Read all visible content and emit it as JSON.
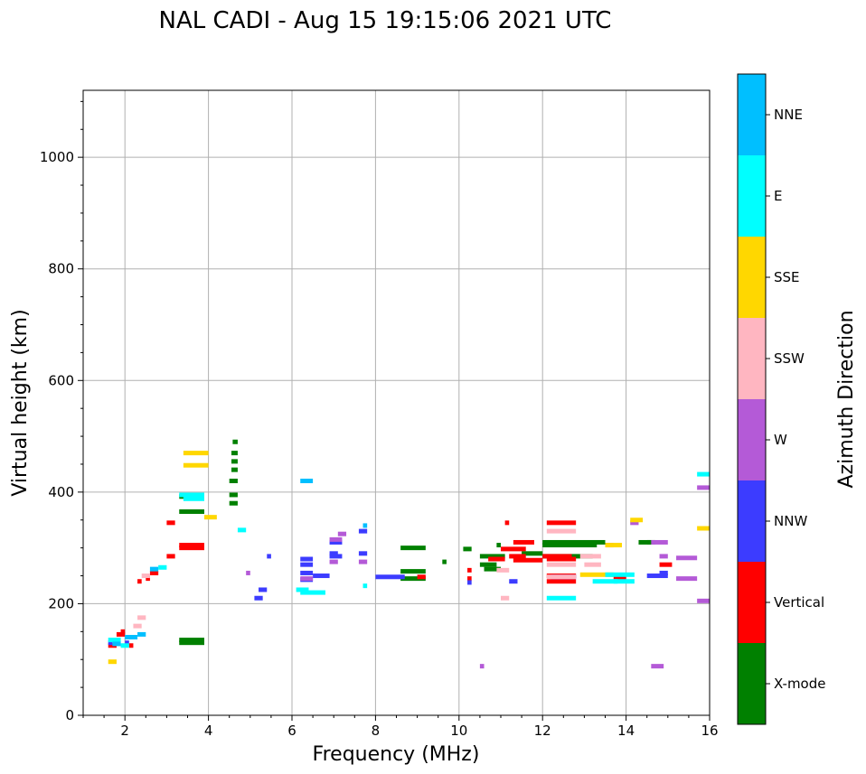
{
  "chart_data": {
    "type": "scatter",
    "title": "NAL CADI - Aug 15 19:15:06 2021 UTC",
    "xlabel": "Frequency (MHz)",
    "ylabel": "Virtual height (km)",
    "xlim": [
      1,
      16
    ],
    "ylim": [
      0,
      1120
    ],
    "xticks": [
      2,
      4,
      6,
      8,
      10,
      12,
      14,
      16
    ],
    "yticks": [
      0,
      200,
      400,
      600,
      800,
      1000
    ],
    "grid": true,
    "colorbar": {
      "label": "Azimuth Direction",
      "categories": [
        "X-mode",
        "Vertical",
        "NNW",
        "W",
        "SSW",
        "SSE",
        "E",
        "NNE"
      ],
      "colors": [
        "#008000",
        "#ff0000",
        "#3c3cff",
        "#b45ad7",
        "#ffb6c1",
        "#ffd700",
        "#00ffff",
        "#00bfff"
      ]
    },
    "series": [
      {
        "name": "X-mode",
        "segments": [
          [
            3.3,
            3.9,
            135
          ],
          [
            3.3,
            3.9,
            130
          ],
          [
            3.3,
            3.9,
            365
          ],
          [
            3.3,
            3.9,
            392
          ],
          [
            4.5,
            4.7,
            380
          ],
          [
            4.5,
            4.7,
            395
          ],
          [
            4.5,
            4.7,
            420
          ],
          [
            4.55,
            4.7,
            440
          ],
          [
            4.55,
            4.7,
            455
          ],
          [
            4.55,
            4.7,
            470
          ],
          [
            4.58,
            4.7,
            490
          ],
          [
            8.6,
            9.2,
            245
          ],
          [
            8.6,
            9.2,
            258
          ],
          [
            8.6,
            9.2,
            300
          ],
          [
            9.6,
            9.7,
            275
          ],
          [
            10.1,
            10.3,
            298
          ],
          [
            10.5,
            10.9,
            270
          ],
          [
            10.5,
            11.1,
            285
          ],
          [
            10.6,
            11.0,
            262
          ],
          [
            10.9,
            11.0,
            305
          ],
          [
            11.5,
            12.0,
            290
          ],
          [
            12.0,
            13.5,
            310
          ],
          [
            12.0,
            13.2,
            285
          ],
          [
            12.0,
            13.3,
            305
          ],
          [
            14.3,
            14.6,
            310
          ],
          [
            14.5,
            14.7,
            310
          ]
        ]
      },
      {
        "name": "Vertical",
        "segments": [
          [
            1.6,
            1.8,
            125
          ],
          [
            1.8,
            2.0,
            145
          ],
          [
            1.9,
            2.0,
            150
          ],
          [
            2.1,
            2.2,
            125
          ],
          [
            2.3,
            2.4,
            240
          ],
          [
            2.5,
            2.6,
            245
          ],
          [
            2.6,
            2.8,
            255
          ],
          [
            3.0,
            3.2,
            285
          ],
          [
            3.0,
            3.2,
            345
          ],
          [
            3.3,
            3.9,
            300
          ],
          [
            3.3,
            3.9,
            305
          ],
          [
            9.0,
            9.2,
            248
          ],
          [
            10.2,
            10.3,
            245
          ],
          [
            10.2,
            10.3,
            260
          ],
          [
            10.7,
            11.1,
            280
          ],
          [
            11.0,
            11.6,
            298
          ],
          [
            11.1,
            11.2,
            345
          ],
          [
            11.2,
            11.6,
            285
          ],
          [
            11.3,
            12.0,
            278
          ],
          [
            11.3,
            11.8,
            310
          ],
          [
            12.0,
            12.7,
            285
          ],
          [
            12.1,
            12.8,
            280
          ],
          [
            12.1,
            12.8,
            345
          ],
          [
            12.1,
            12.8,
            250
          ],
          [
            12.1,
            12.8,
            240
          ],
          [
            13.7,
            14.0,
            245
          ],
          [
            14.8,
            15.1,
            270
          ]
        ]
      },
      {
        "name": "NNW",
        "segments": [
          [
            1.6,
            1.7,
            130
          ],
          [
            2.0,
            2.1,
            130
          ],
          [
            5.1,
            5.3,
            210
          ],
          [
            5.2,
            5.4,
            225
          ],
          [
            5.4,
            5.5,
            285
          ],
          [
            6.2,
            6.5,
            280
          ],
          [
            6.2,
            6.5,
            270
          ],
          [
            6.2,
            6.5,
            255
          ],
          [
            6.2,
            6.5,
            243
          ],
          [
            6.5,
            6.9,
            250
          ],
          [
            6.9,
            7.2,
            310
          ],
          [
            6.9,
            7.2,
            285
          ],
          [
            6.9,
            7.1,
            290
          ],
          [
            7.6,
            7.8,
            290
          ],
          [
            7.6,
            7.8,
            330
          ],
          [
            8.0,
            8.7,
            248
          ],
          [
            10.2,
            10.3,
            238
          ],
          [
            11.2,
            11.4,
            240
          ],
          [
            12.2,
            12.8,
            248
          ],
          [
            14.5,
            15.0,
            250
          ],
          [
            14.8,
            15.0,
            255
          ]
        ]
      },
      {
        "name": "W",
        "segments": [
          [
            4.9,
            5.0,
            255
          ],
          [
            6.2,
            6.5,
            245
          ],
          [
            6.9,
            7.2,
            315
          ],
          [
            6.9,
            7.1,
            275
          ],
          [
            7.1,
            7.3,
            325
          ],
          [
            7.6,
            7.8,
            275
          ],
          [
            10.5,
            10.6,
            88
          ],
          [
            13.5,
            13.7,
            305
          ],
          [
            14.1,
            14.3,
            345
          ],
          [
            14.6,
            14.9,
            88
          ],
          [
            14.6,
            15.0,
            310
          ],
          [
            14.8,
            15.0,
            285
          ],
          [
            15.2,
            15.7,
            282
          ],
          [
            15.2,
            15.7,
            245
          ],
          [
            15.7,
            16.0,
            408
          ],
          [
            15.7,
            16.0,
            205
          ]
        ]
      },
      {
        "name": "SSW",
        "segments": [
          [
            2.2,
            2.4,
            160
          ],
          [
            2.3,
            2.5,
            175
          ],
          [
            2.4,
            2.6,
            250
          ],
          [
            10.9,
            11.2,
            260
          ],
          [
            11.0,
            11.2,
            210
          ],
          [
            12.1,
            12.8,
            330
          ],
          [
            12.1,
            12.8,
            270
          ],
          [
            12.1,
            12.8,
            248
          ],
          [
            12.9,
            13.4,
            285
          ],
          [
            13.0,
            13.4,
            270
          ]
        ]
      },
      {
        "name": "SSE",
        "segments": [
          [
            1.6,
            1.8,
            96
          ],
          [
            3.4,
            4.0,
            470
          ],
          [
            3.4,
            4.0,
            448
          ],
          [
            3.9,
            4.2,
            355
          ],
          [
            12.9,
            13.7,
            252
          ],
          [
            13.5,
            13.9,
            305
          ],
          [
            14.1,
            14.4,
            350
          ],
          [
            15.7,
            16.0,
            335
          ]
        ]
      },
      {
        "name": "E",
        "segments": [
          [
            1.6,
            1.9,
            135
          ],
          [
            1.9,
            2.1,
            125
          ],
          [
            2.8,
            3.0,
            265
          ],
          [
            3.3,
            3.9,
            395
          ],
          [
            3.4,
            3.9,
            388
          ],
          [
            4.7,
            4.9,
            332
          ],
          [
            6.1,
            6.4,
            225
          ],
          [
            6.2,
            6.8,
            220
          ],
          [
            7.7,
            7.8,
            232
          ],
          [
            12.1,
            12.8,
            210
          ],
          [
            13.2,
            13.8,
            240
          ],
          [
            13.5,
            14.2,
            252
          ],
          [
            13.7,
            14.2,
            240
          ],
          [
            15.7,
            16.0,
            432
          ]
        ]
      },
      {
        "name": "NNE",
        "segments": [
          [
            1.7,
            1.9,
            128
          ],
          [
            2.0,
            2.3,
            140
          ],
          [
            2.3,
            2.5,
            145
          ],
          [
            2.6,
            2.8,
            262
          ],
          [
            6.2,
            6.5,
            420
          ],
          [
            7.7,
            7.8,
            340
          ]
        ]
      }
    ]
  }
}
